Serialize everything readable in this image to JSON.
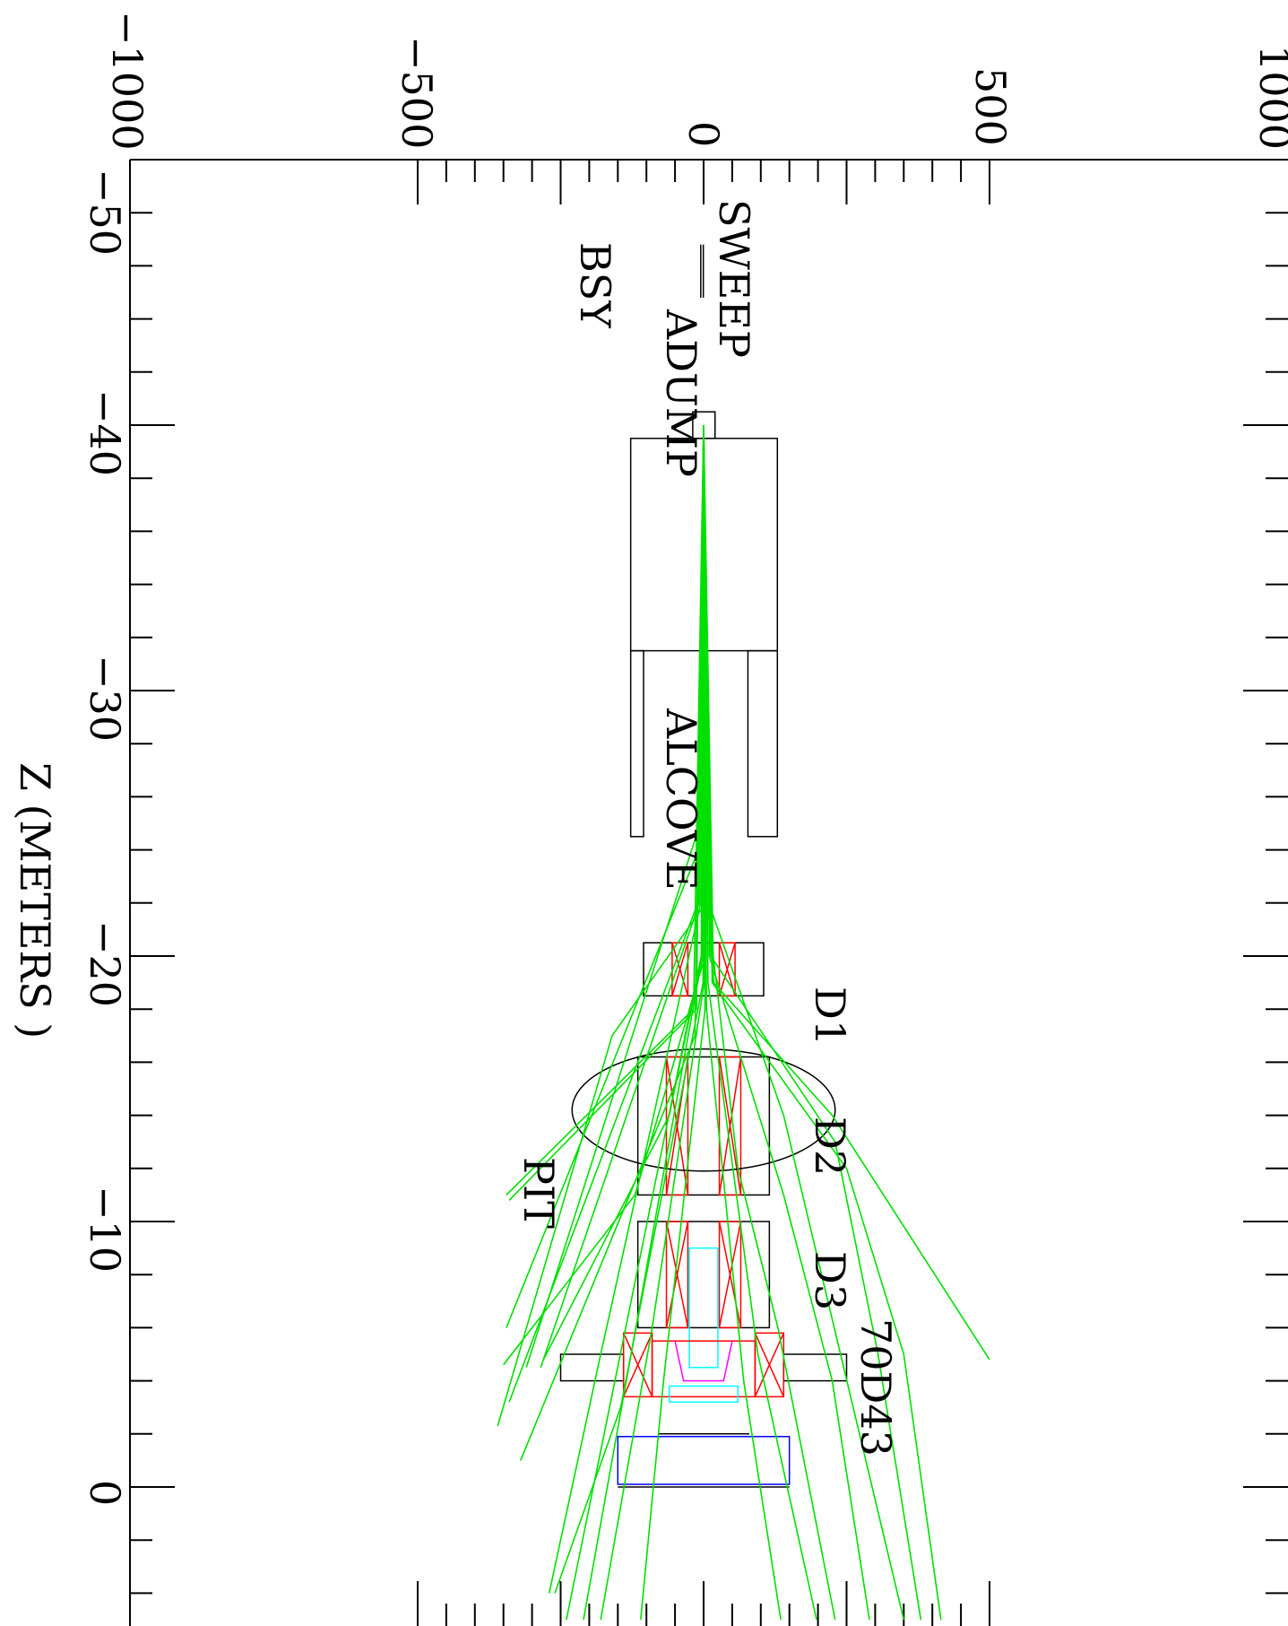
{
  "axes": {
    "z_title": "Z (METERS )",
    "z_ticks": [
      "−50",
      "−40",
      "−30",
      "−20",
      "−10",
      "0"
    ],
    "x_ticks": [
      "−1000",
      "−500",
      "0",
      "500",
      "1000"
    ],
    "z_range": [
      -50,
      6
    ],
    "x_range": [
      -1000,
      1000
    ]
  },
  "labels": {
    "sweep": "SWEEP",
    "bsy": "BSY",
    "adump": "ADUMP",
    "alcove": "ALCOVE",
    "d1": "D1",
    "d2": "D2",
    "pit": "PIT",
    "d3": "D3",
    "d43": "70D43"
  },
  "colors": {
    "tracks": "#00e000",
    "coils": "#ff0000",
    "iron": "#000000",
    "cyan": "#00ffff",
    "magenta": "#ff00ff",
    "blue": "#0000ff"
  }
}
